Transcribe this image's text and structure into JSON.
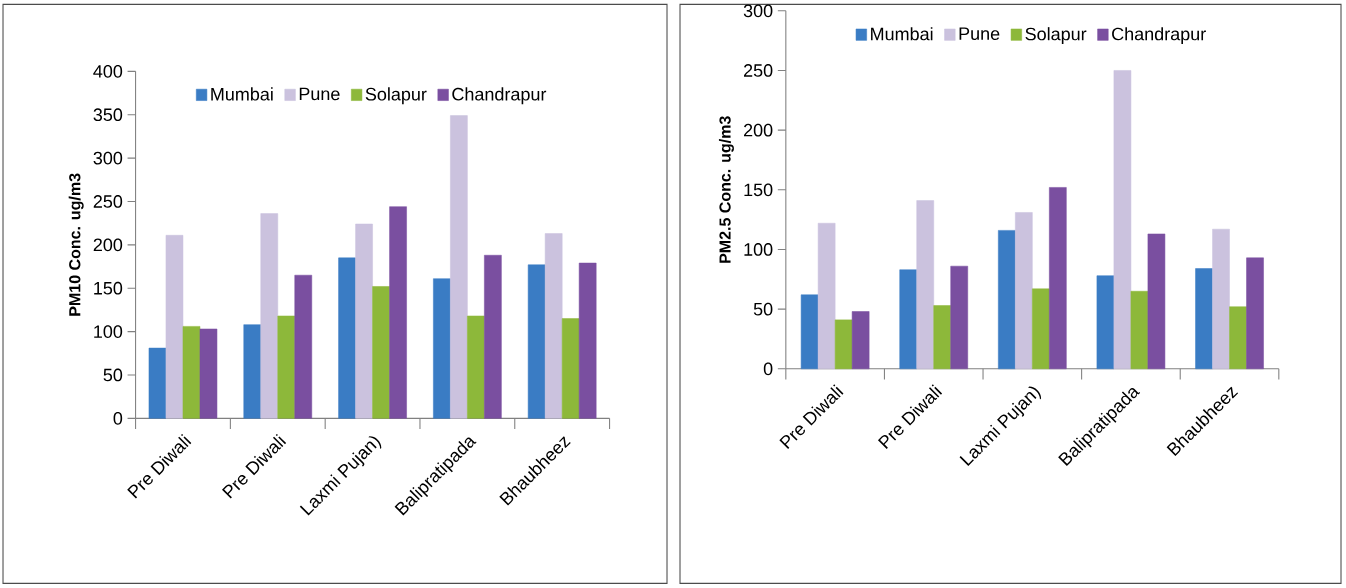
{
  "chart_data": [
    {
      "type": "bar",
      "ylabel": "PM10 Conc. ug/m3",
      "categories": [
        "Pre Diwali",
        "Pre Diwali",
        "Laxmi Pujan)",
        "Balipratipada",
        "Bhaubheez"
      ],
      "series": [
        {
          "name": "Mumbai",
          "color": "#3a7cc4",
          "values": [
            81,
            108,
            185,
            161,
            177
          ]
        },
        {
          "name": "Pune",
          "color": "#cbc2de",
          "values": [
            211,
            236,
            224,
            349,
            213
          ]
        },
        {
          "name": "Solapur",
          "color": "#8db83a",
          "values": [
            106,
            118,
            152,
            118,
            115
          ]
        },
        {
          "name": "Chandrapur",
          "color": "#7a4fa0",
          "values": [
            103,
            165,
            244,
            188,
            179
          ]
        }
      ],
      "ylim": [
        0,
        400
      ],
      "yticks": [
        0,
        50,
        100,
        150,
        200,
        250,
        300,
        350,
        400
      ],
      "legend": "top",
      "grid": false
    },
    {
      "type": "bar",
      "ylabel": "PM2.5 Conc. ug/m3",
      "categories": [
        "Pre Diwali",
        "Pre Diwali",
        "Laxmi Pujan)",
        "Balipratipada",
        "Bhaubheez"
      ],
      "series": [
        {
          "name": "Mumbai",
          "color": "#3a7cc4",
          "values": [
            62,
            83,
            116,
            78,
            84
          ]
        },
        {
          "name": "Pune",
          "color": "#cbc2de",
          "values": [
            122,
            141,
            131,
            250,
            117
          ]
        },
        {
          "name": "Solapur",
          "color": "#8db83a",
          "values": [
            41,
            53,
            67,
            65,
            52
          ]
        },
        {
          "name": "Chandrapur",
          "color": "#7a4fa0",
          "values": [
            48,
            86,
            152,
            113,
            93
          ]
        }
      ],
      "ylim": [
        0,
        300
      ],
      "yticks": [
        0,
        50,
        100,
        150,
        200,
        250,
        300
      ],
      "legend": "top",
      "grid": false
    }
  ]
}
